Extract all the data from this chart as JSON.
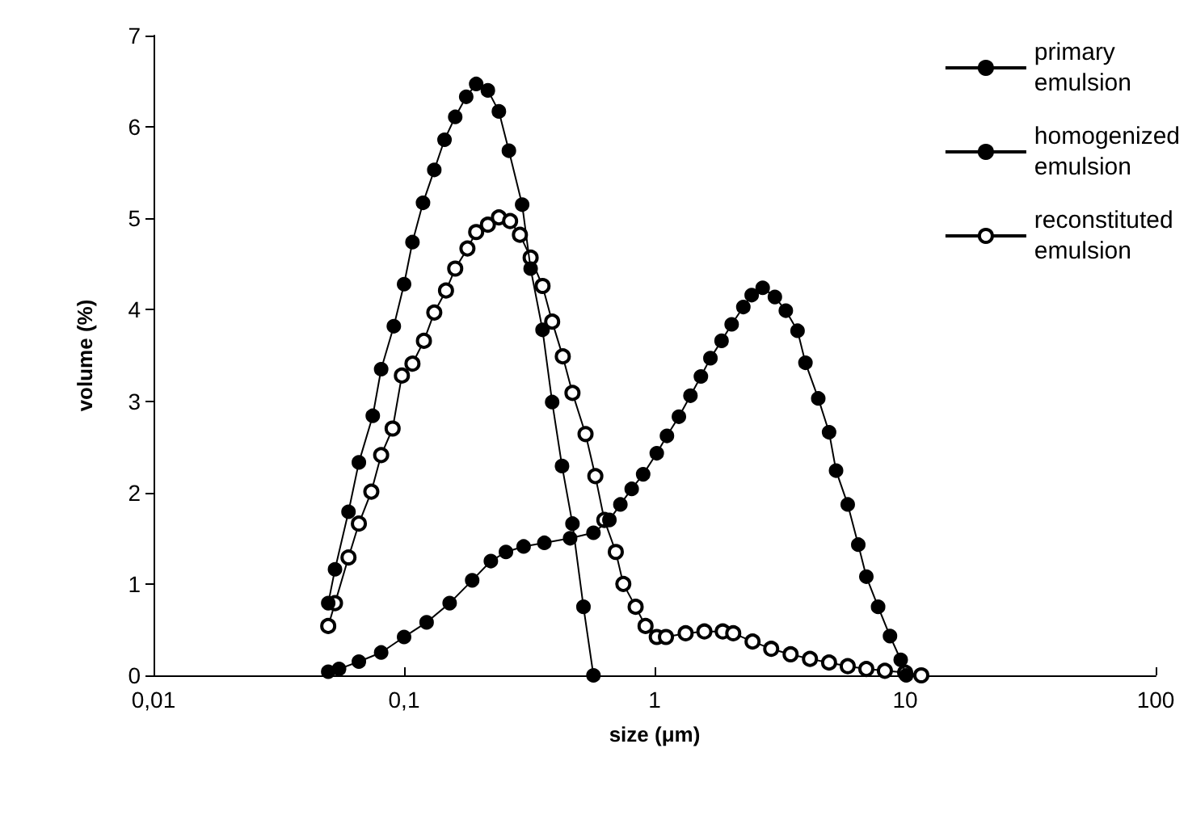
{
  "chart_data": {
    "type": "line",
    "xlabel": "size (μm)",
    "ylabel": "volume (%)",
    "log": "x",
    "xlim": [
      0.01,
      100
    ],
    "xticks": [
      {
        "value": 0.01,
        "label": "0,01"
      },
      {
        "value": 0.1,
        "label": "0,1"
      },
      1,
      10,
      100
    ],
    "ylim": [
      0,
      7
    ],
    "yticks": [
      0,
      1,
      2,
      3,
      4,
      5,
      6,
      7
    ],
    "grid": false,
    "legend": "top right",
    "line_style": "solid",
    "series": [
      {
        "name": "primary emulsion",
        "color": "#000000",
        "marker": "circle",
        "x": [
          0.0498,
          0.055,
          0.066,
          0.081,
          0.1,
          0.123,
          0.152,
          0.187,
          0.222,
          0.255,
          0.3,
          0.363,
          0.46,
          0.57,
          0.66,
          0.73,
          0.81,
          0.9,
          1.02,
          1.12,
          1.25,
          1.39,
          1.53,
          1.67,
          1.85,
          2.03,
          2.26,
          2.44,
          2.7,
          3.02,
          3.34,
          3.72,
          4.0,
          4.5,
          4.97,
          5.3,
          5.9,
          6.5,
          7.0,
          7.8,
          8.7,
          9.6,
          10.1
        ],
        "values": [
          0.04,
          0.07,
          0.15,
          0.25,
          0.42,
          0.58,
          0.79,
          1.04,
          1.25,
          1.35,
          1.41,
          1.45,
          1.5,
          1.56,
          1.7,
          1.87,
          2.04,
          2.2,
          2.43,
          2.62,
          2.83,
          3.06,
          3.27,
          3.47,
          3.66,
          3.84,
          4.03,
          4.16,
          4.24,
          4.14,
          3.99,
          3.77,
          3.42,
          3.03,
          2.66,
          2.24,
          1.87,
          1.43,
          1.08,
          0.75,
          0.43,
          0.17,
          0
        ]
      },
      {
        "name": "homogenized emulsion",
        "color": "#000000",
        "marker": "circle",
        "x": [
          0.0498,
          0.053,
          0.06,
          0.066,
          0.075,
          0.081,
          0.091,
          0.1,
          0.108,
          0.119,
          0.132,
          0.145,
          0.16,
          0.177,
          0.194,
          0.216,
          0.239,
          0.262,
          0.296,
          0.32,
          0.357,
          0.39,
          0.427,
          0.47,
          0.52,
          0.57
        ],
        "values": [
          0.79,
          1.16,
          1.79,
          2.33,
          2.84,
          3.35,
          3.82,
          4.28,
          4.74,
          5.17,
          5.53,
          5.86,
          6.11,
          6.33,
          6.47,
          6.4,
          6.17,
          5.74,
          5.15,
          4.45,
          3.78,
          2.99,
          2.29,
          1.66,
          0.75,
          0
        ]
      },
      {
        "name": "reconstituted emulsion",
        "color": "#000000",
        "marker": "open circle",
        "x": [
          0.0498,
          0.053,
          0.06,
          0.066,
          0.074,
          0.081,
          0.09,
          0.098,
          0.108,
          0.12,
          0.132,
          0.147,
          0.16,
          0.179,
          0.194,
          0.216,
          0.239,
          0.265,
          0.29,
          0.32,
          0.357,
          0.39,
          0.43,
          0.47,
          0.53,
          0.58,
          0.63,
          0.7,
          0.75,
          0.84,
          0.92,
          1.02,
          1.11,
          1.33,
          1.58,
          1.87,
          2.06,
          2.46,
          2.92,
          3.49,
          4.17,
          4.97,
          5.9,
          7.0,
          8.3,
          10,
          11.6
        ],
        "values": [
          0.54,
          0.79,
          1.29,
          1.66,
          2.01,
          2.41,
          2.7,
          3.28,
          3.41,
          3.66,
          3.97,
          4.21,
          4.45,
          4.67,
          4.85,
          4.93,
          5.01,
          4.97,
          4.82,
          4.57,
          4.26,
          3.87,
          3.49,
          3.09,
          2.64,
          2.18,
          1.7,
          1.35,
          1.0,
          0.75,
          0.54,
          0.42,
          0.42,
          0.46,
          0.48,
          0.48,
          0.46,
          0.37,
          0.29,
          0.23,
          0.18,
          0.14,
          0.1,
          0.07,
          0.05,
          0.03,
          0
        ]
      }
    ]
  }
}
